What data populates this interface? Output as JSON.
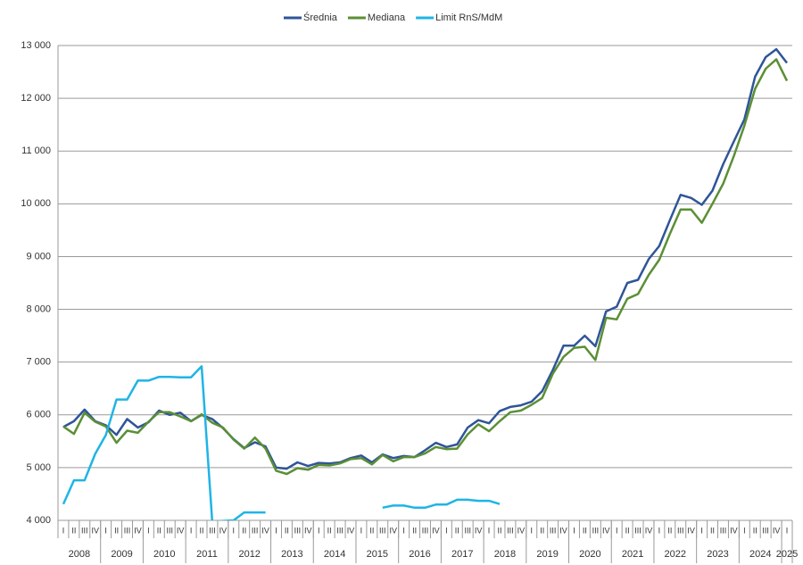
{
  "chart_data": {
    "type": "line",
    "categories": [
      "I",
      "II",
      "III",
      "IV",
      "I",
      "II",
      "III",
      "IV",
      "I",
      "II",
      "III",
      "IV",
      "I",
      "II",
      "III",
      "IV",
      "I",
      "II",
      "III",
      "IV",
      "I",
      "II",
      "III",
      "IV",
      "I",
      "II",
      "III",
      "IV",
      "I",
      "II",
      "III",
      "IV",
      "I",
      "II",
      "III",
      "IV",
      "I",
      "II",
      "III",
      "IV",
      "I",
      "II",
      "III",
      "IV",
      "I",
      "II",
      "III",
      "IV",
      "I",
      "II",
      "III",
      "IV",
      "I",
      "II",
      "III",
      "IV",
      "I",
      "II",
      "III",
      "IV",
      "I",
      "II",
      "III",
      "IV",
      "I",
      "II",
      "III",
      "IV",
      "I"
    ],
    "years": [
      "2008",
      "2009",
      "2010",
      "2011",
      "2012",
      "2013",
      "2014",
      "2015",
      "2016",
      "2017",
      "2018",
      "2019",
      "2020",
      "2021",
      "2022",
      "2023",
      "2024",
      "2025"
    ],
    "series": [
      {
        "name": "Średnia",
        "color": "#2f5597",
        "values": [
          5770,
          5880,
          6100,
          5880,
          5800,
          5620,
          5920,
          5760,
          5860,
          6080,
          6000,
          6040,
          5880,
          6000,
          5920,
          5750,
          5540,
          5370,
          5480,
          5400,
          5000,
          4980,
          5100,
          5030,
          5090,
          5080,
          5100,
          5180,
          5230,
          5100,
          5250,
          5180,
          5220,
          5200,
          5330,
          5470,
          5390,
          5440,
          5760,
          5900,
          5840,
          6070,
          6150,
          6180,
          6250,
          6450,
          6850,
          7310,
          7310,
          7500,
          7300,
          7960,
          8050,
          8500,
          8560,
          8950,
          9200,
          9690,
          10170,
          10110,
          9980,
          10250,
          10750,
          11180,
          11600,
          12410,
          12780,
          12930,
          12670
        ]
      },
      {
        "name": "Mediana",
        "color": "#5b8f35",
        "values": [
          5780,
          5640,
          6040,
          5870,
          5780,
          5470,
          5700,
          5660,
          5870,
          6050,
          6050,
          5970,
          5880,
          6010,
          5850,
          5760,
          5530,
          5360,
          5570,
          5360,
          4940,
          4880,
          4990,
          4960,
          5050,
          5040,
          5080,
          5160,
          5180,
          5060,
          5240,
          5120,
          5200,
          5200,
          5270,
          5390,
          5350,
          5360,
          5630,
          5820,
          5690,
          5880,
          6050,
          6080,
          6190,
          6320,
          6780,
          7100,
          7270,
          7290,
          7040,
          7840,
          7810,
          8200,
          8290,
          8650,
          8940,
          9430,
          9890,
          9890,
          9640,
          10000,
          10380,
          10900,
          11480,
          12180,
          12560,
          12740,
          12330
        ]
      },
      {
        "name": "Limit RnS/MdM",
        "color": "#1fb4e6",
        "values": [
          4310,
          4760,
          4760,
          5260,
          5620,
          6290,
          6290,
          6650,
          6650,
          6720,
          6720,
          6710,
          6710,
          6920,
          3970,
          3990,
          4000,
          4150,
          4150,
          4150,
          null,
          null,
          null,
          null,
          null,
          null,
          null,
          null,
          null,
          null,
          4240,
          4280,
          4280,
          4240,
          4240,
          4300,
          4300,
          4390,
          4390,
          4370,
          4370,
          4310,
          null,
          null,
          null,
          null,
          null,
          null,
          null,
          null,
          null,
          null,
          null,
          null,
          null,
          null,
          null,
          null,
          null,
          null,
          null,
          null,
          null,
          null,
          null,
          null,
          null,
          null,
          null
        ]
      }
    ],
    "ylim": [
      4000,
      13000
    ],
    "yticks": [
      {
        "value": 4000,
        "label": "4 000"
      },
      {
        "value": 5000,
        "label": "5 000"
      },
      {
        "value": 6000,
        "label": "6 000"
      },
      {
        "value": 7000,
        "label": "7 000"
      },
      {
        "value": 8000,
        "label": "8 000"
      },
      {
        "value": 9000,
        "label": "9 000"
      },
      {
        "value": 10000,
        "label": "10 000"
      },
      {
        "value": 11000,
        "label": "11 000"
      },
      {
        "value": 12000,
        "label": "12 000"
      },
      {
        "value": 13000,
        "label": "13 000"
      }
    ],
    "grid": true,
    "legend": "top"
  }
}
